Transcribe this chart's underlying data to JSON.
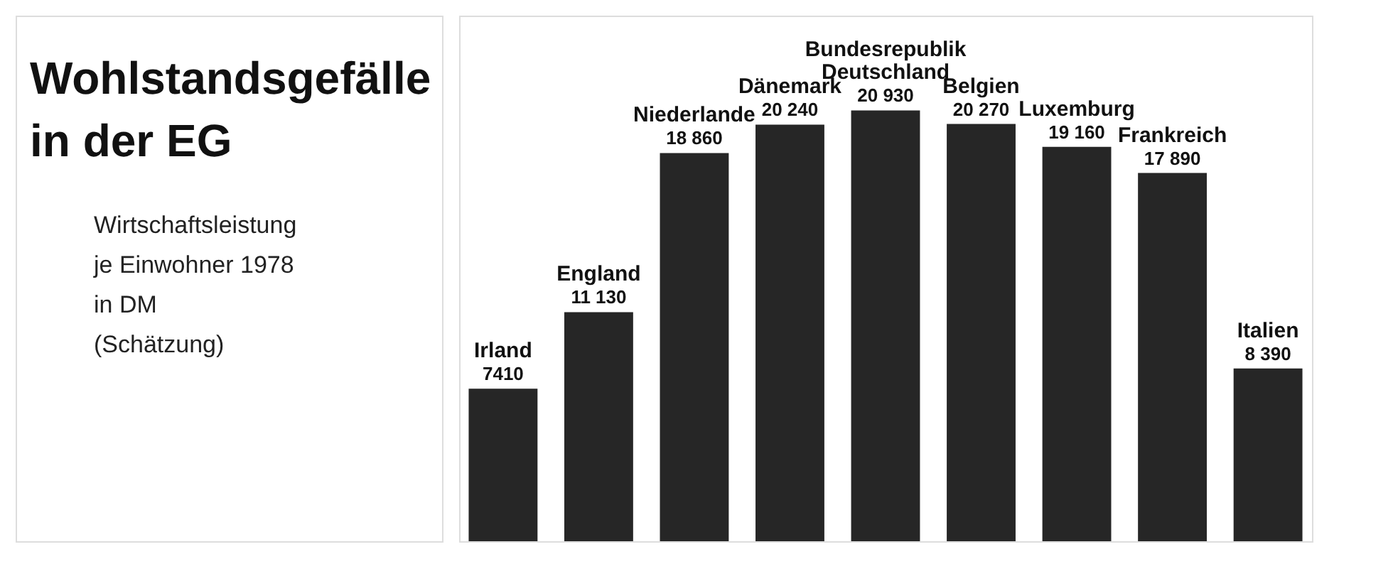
{
  "chart_data": {
    "type": "bar",
    "title": "Wohlstandsgefälle\nin der EG",
    "subtitle": "Wirtschaftsleistung\nje Einwohner 1978\nin DM\n(Schätzung)",
    "categories": [
      "Irland",
      "England",
      "Niederlande",
      "Dänemark",
      "Bundesrepublik\nDeutschland",
      "Belgien",
      "Luxemburg",
      "Frankreich",
      "Italien"
    ],
    "values": [
      7410,
      11130,
      18860,
      20240,
      20930,
      20270,
      19160,
      17890,
      8390
    ],
    "value_labels": [
      "7410",
      "11 130",
      "18 860",
      "20 240",
      "20 930",
      "20 270",
      "19 160",
      "17 890",
      "8 390"
    ],
    "color": "#262626"
  }
}
